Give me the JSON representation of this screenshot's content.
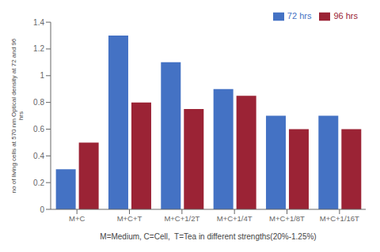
{
  "chart_data": {
    "type": "bar",
    "categories": [
      "M+C",
      "M+C+T",
      "M+C+1/2T",
      "M+C+1/4T",
      "M+C+1/8T",
      "M+C+1/16T"
    ],
    "series": [
      {
        "name": "72 hrs",
        "color": "#4472C4",
        "values": [
          0.3,
          1.3,
          1.1,
          0.9,
          0.7,
          0.7
        ]
      },
      {
        "name": "96 hrs",
        "color": "#9B2335",
        "values": [
          0.5,
          0.8,
          0.75,
          0.85,
          0.6,
          0.6
        ]
      }
    ],
    "xlabel": "M=Medium, C=Cell,  T=Tea in different strengths(20%-1.25%)",
    "ylabel": "no of living cells at 570 nm Optical density at 72 and 96\nhrs",
    "ylim": [
      0,
      1.4
    ],
    "yticks": [
      0,
      0.2,
      0.4,
      0.6,
      0.8,
      1,
      1.2,
      1.4
    ],
    "grid": false,
    "legend": "upper right"
  }
}
